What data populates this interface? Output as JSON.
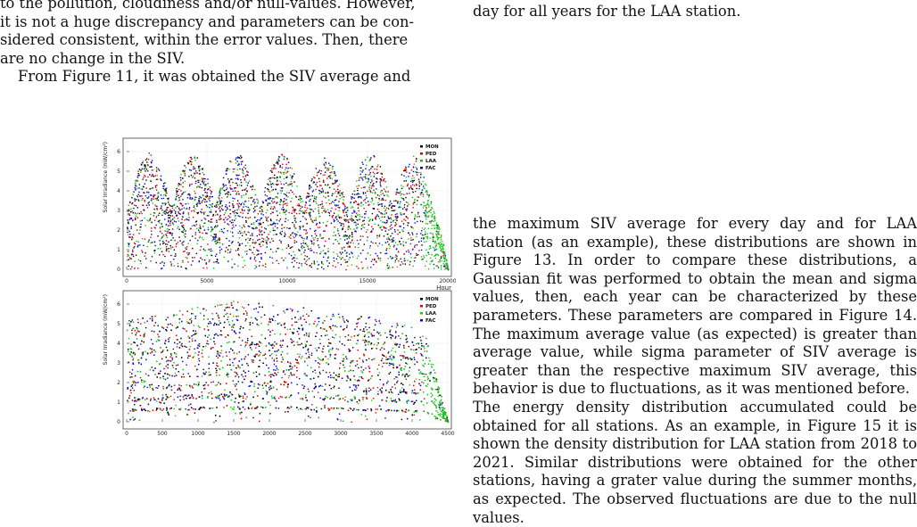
{
  "left_column": {
    "line1": "to the pollution, cloudiness and/or null-values. However,",
    "line2": "it is not a huge discrepancy and parameters can be con-",
    "line3": "sidered consistent, within the error values. Then, there",
    "line4": "are no change in the SIV.",
    "para2_line1": "From Figure 11, it was obtained the SIV average and"
  },
  "caption_tail": "day for all years for the LAA station.",
  "right_column": {
    "para1": "the maximum SIV average for every day and for LAA station (as an example), these distributions are shown in Figure 13. In order to compare these distributions, a Gaussian fit was performed to obtain the mean and sigma values, then, each year can be characterized by these parameters. These parameters are compared in Figure 14. The maximum average value (as expected) is greater than average value, while sigma parameter of SIV average is greater than the respective maximum SIV average, this behavior is due to fluctuations, as it was mentioned before.",
    "para2": "The energy density distribution accumulated could be obtained for all stations. As an example, in Figure 15 it is shown the density distribution for LAA station from 2018 to 2021. Similar distributions were obtained for the other stations, having a grater value during the summer months, as expected. The observed fluctuations are due to the null values."
  },
  "chart_data": [
    {
      "type": "scatter",
      "title": "",
      "xlabel": "Hour",
      "ylabel": "Solar Irradiance (mW/cm²)",
      "xlim": [
        0,
        20000
      ],
      "ylim": [
        0,
        6.5
      ],
      "x_ticks": [
        "0",
        "5000",
        "10000",
        "15000",
        "20000"
      ],
      "y_ticks": [
        "0",
        "1",
        "2",
        "3",
        "4",
        "5",
        "6"
      ],
      "legend_position": "top-right",
      "grid": true,
      "series": [
        {
          "name": "MON",
          "color": "#000000"
        },
        {
          "name": "PED",
          "color": "#e00000"
        },
        {
          "name": "LAA",
          "color": "#18c418"
        },
        {
          "name": "FAC",
          "color": "#0000e0"
        }
      ],
      "seasonal_peak_hours": [
        1000,
        3800,
        6500,
        9200,
        12000,
        14800,
        17500
      ],
      "envelope": {
        "x": [
          0,
          1500,
          3800,
          6000,
          8300,
          11300,
          12800,
          15500,
          18000,
          19200,
          20000
        ],
        "y": [
          5.6,
          6.0,
          5.8,
          6.0,
          5.8,
          6.0,
          5.6,
          6.0,
          5.8,
          4.8,
          0
        ]
      }
    },
    {
      "type": "scatter",
      "title": "",
      "xlabel": "Hour",
      "ylabel": "Solar Irradiance (mW/cm²)",
      "xlim": [
        0,
        4500
      ],
      "ylim": [
        0,
        6.5
      ],
      "x_ticks": [
        "0",
        "500",
        "1000",
        "1500",
        "2000",
        "2500",
        "3000",
        "3500",
        "4000",
        "4500"
      ],
      "y_ticks": [
        "0",
        "1",
        "2",
        "3",
        "4",
        "5",
        "6"
      ],
      "legend_position": "top-right",
      "grid": true,
      "series": [
        {
          "name": "MON",
          "color": "#000000"
        },
        {
          "name": "PED",
          "color": "#e00000"
        },
        {
          "name": "LAA",
          "color": "#18c418"
        },
        {
          "name": "FAC",
          "color": "#0000e0"
        }
      ],
      "envelope": {
        "x": [
          0,
          500,
          1000,
          1500,
          2000,
          2500,
          3000,
          3500,
          4000,
          4200,
          4500
        ],
        "y": [
          5.2,
          5.5,
          5.9,
          6.2,
          6.0,
          5.9,
          5.6,
          5.3,
          4.9,
          4.3,
          0
        ]
      }
    }
  ]
}
